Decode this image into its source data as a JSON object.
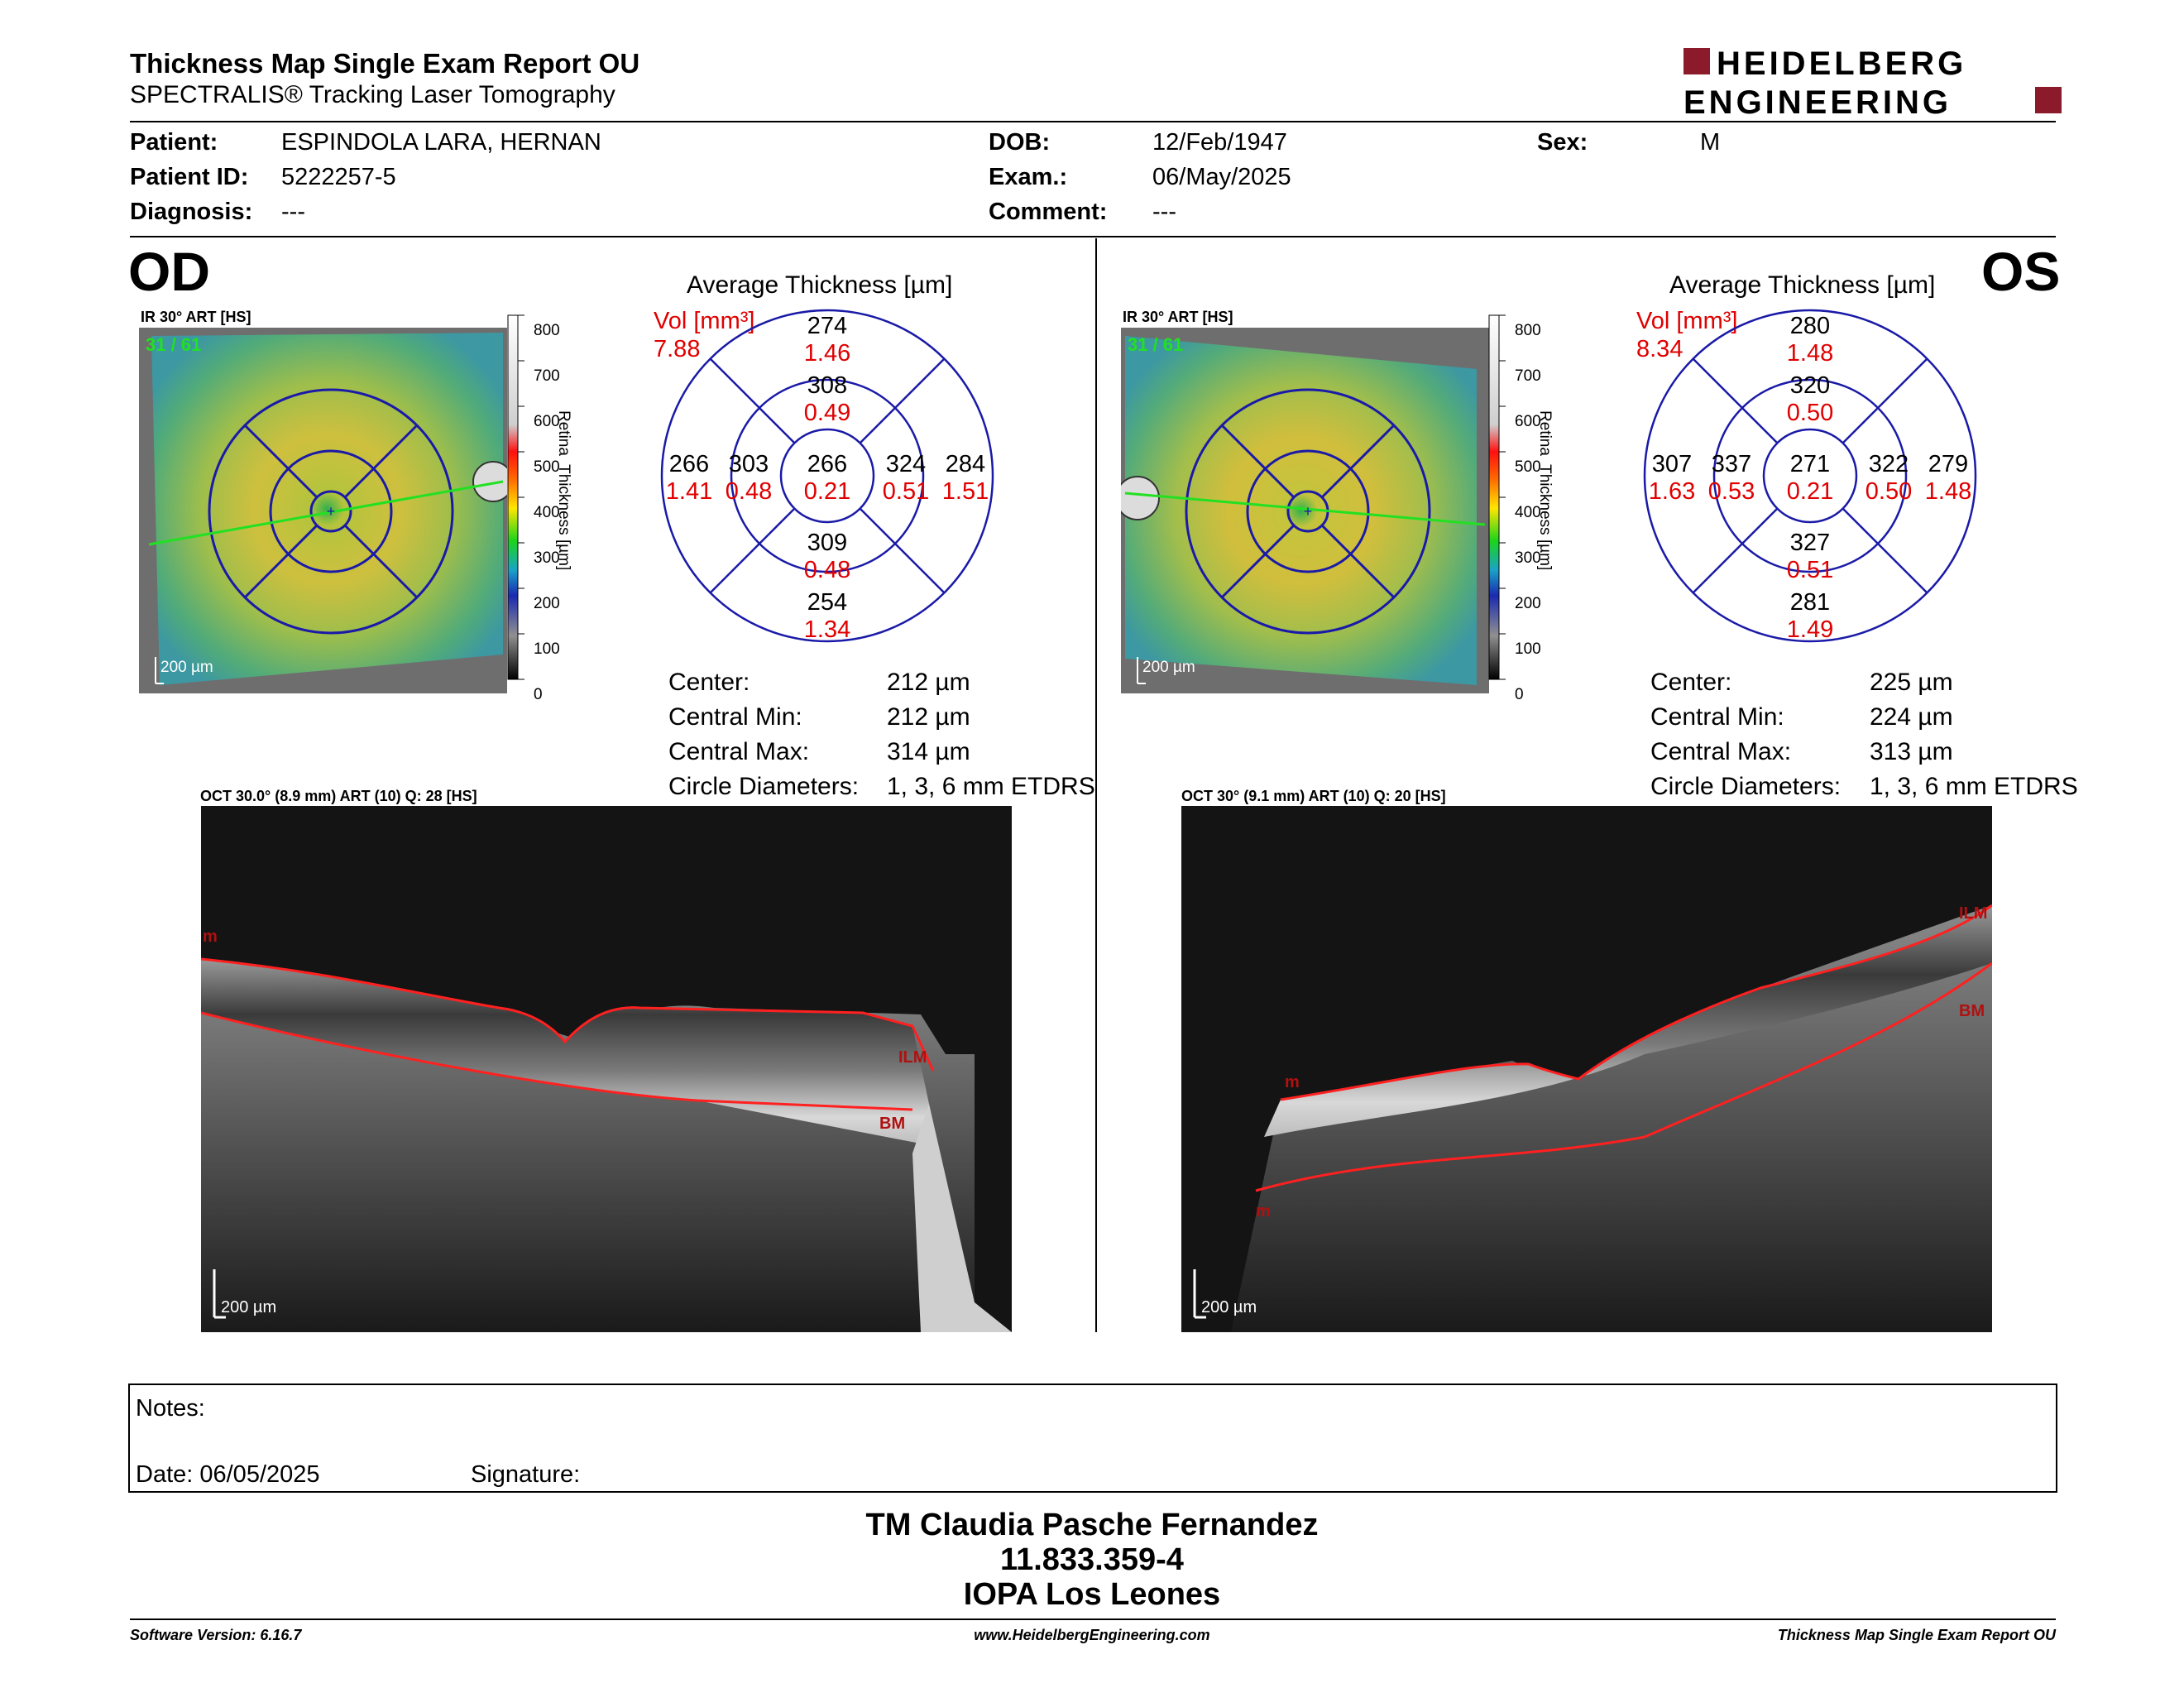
{
  "header": {
    "title": "Thickness Map Single Exam Report OU",
    "subtitle": "SPECTRALIS® Tracking Laser Tomography",
    "logo_line1": "HEIDELBERG",
    "logo_line2": "ENGINEERING"
  },
  "patient": {
    "patient_label": "Patient:",
    "patient_value": "ESPINDOLA LARA, HERNAN",
    "id_label": "Patient ID:",
    "id_value": "5222257-5",
    "diagnosis_label": "Diagnosis:",
    "diagnosis_value": "---",
    "dob_label": "DOB:",
    "dob_value": "12/Feb/1947",
    "exam_label": "Exam.:",
    "exam_value": "06/May/2025",
    "comment_label": "Comment:",
    "comment_value": "---",
    "sex_label": "Sex:",
    "sex_value": "M"
  },
  "od": {
    "eye": "OD",
    "ir_label": "IR 30° ART [HS]",
    "frame": "31 / 61",
    "scale": "200 µm",
    "colorbar_ticks": [
      "800",
      "700",
      "600",
      "500",
      "400",
      "300",
      "200",
      "100",
      "0"
    ],
    "colorbar_title": "Retina  Thickness [µm]",
    "avg_title": "Average Thickness [µm]",
    "vol_label": "Vol [mm³]",
    "vol_value": "7.88",
    "sectors": {
      "outer_sup": [
        "274",
        "1.46"
      ],
      "inner_sup": [
        "308",
        "0.49"
      ],
      "outer_temp": [
        "266",
        "1.41"
      ],
      "inner_temp": [
        "303",
        "0.48"
      ],
      "center": [
        "266",
        "0.21"
      ],
      "inner_nas": [
        "324",
        "0.51"
      ],
      "outer_nas": [
        "284",
        "1.51"
      ],
      "inner_inf": [
        "309",
        "0.48"
      ],
      "outer_inf": [
        "254",
        "1.34"
      ]
    },
    "stats": {
      "center_label": "Center:",
      "center_value": "212 µm",
      "min_label": "Central Min:",
      "min_value": "212 µm",
      "max_label": "Central Max:",
      "max_value": "314 µm",
      "circ_label": "Circle Diameters:",
      "circ_value": "1, 3, 6 mm ETDRS"
    },
    "oct_label": "OCT 30.0° (8.9 mm) ART (10) Q: 28 [HS]",
    "oct_scale": "200 µm",
    "layer_labels": [
      "m",
      "ILM",
      "BM"
    ]
  },
  "os": {
    "eye": "OS",
    "ir_label": "IR 30° ART [HS]",
    "frame": "31 / 61",
    "scale": "200 µm",
    "colorbar_ticks": [
      "800",
      "700",
      "600",
      "500",
      "400",
      "300",
      "200",
      "100",
      "0"
    ],
    "colorbar_title": "Retina  Thickness [µm]",
    "avg_title": "Average Thickness [µm]",
    "vol_label": "Vol [mm³]",
    "vol_value": "8.34",
    "sectors": {
      "outer_sup": [
        "280",
        "1.48"
      ],
      "inner_sup": [
        "320",
        "0.50"
      ],
      "outer_temp": [
        "307",
        "1.63"
      ],
      "inner_temp": [
        "337",
        "0.53"
      ],
      "center": [
        "271",
        "0.21"
      ],
      "inner_nas": [
        "322",
        "0.50"
      ],
      "outer_nas": [
        "279",
        "1.48"
      ],
      "inner_inf": [
        "327",
        "0.51"
      ],
      "outer_inf": [
        "281",
        "1.49"
      ]
    },
    "stats": {
      "center_label": "Center:",
      "center_value": "225 µm",
      "min_label": "Central Min:",
      "min_value": "224 µm",
      "max_label": "Central Max:",
      "max_value": "313 µm",
      "circ_label": "Circle Diameters:",
      "circ_value": "1, 3, 6 mm ETDRS"
    },
    "oct_label": "OCT 30° (9.1 mm) ART (10) Q: 20 [HS]",
    "oct_scale": "200 µm",
    "layer_labels": [
      "ILM",
      "BM",
      "m",
      "m"
    ]
  },
  "notes": {
    "notes_label": "Notes:",
    "date_label": "Date: 06/05/2025",
    "signature_label": "Signature:"
  },
  "signatory": {
    "name": "TM Claudia Pasche Fernandez",
    "id": "11.833.359-4",
    "institution": "IOPA Los Leones"
  },
  "footer": {
    "software": "Software Version: 6.16.7",
    "website": "www.HeidelbergEngineering.com",
    "report": "Thickness Map Single Exam Report OU"
  },
  "colors": {
    "vol_red": "#e00000",
    "etdrs_blue": "#1a1aa8",
    "logo_red": "#8b1a2b",
    "boundary_red": "#ff2020"
  }
}
